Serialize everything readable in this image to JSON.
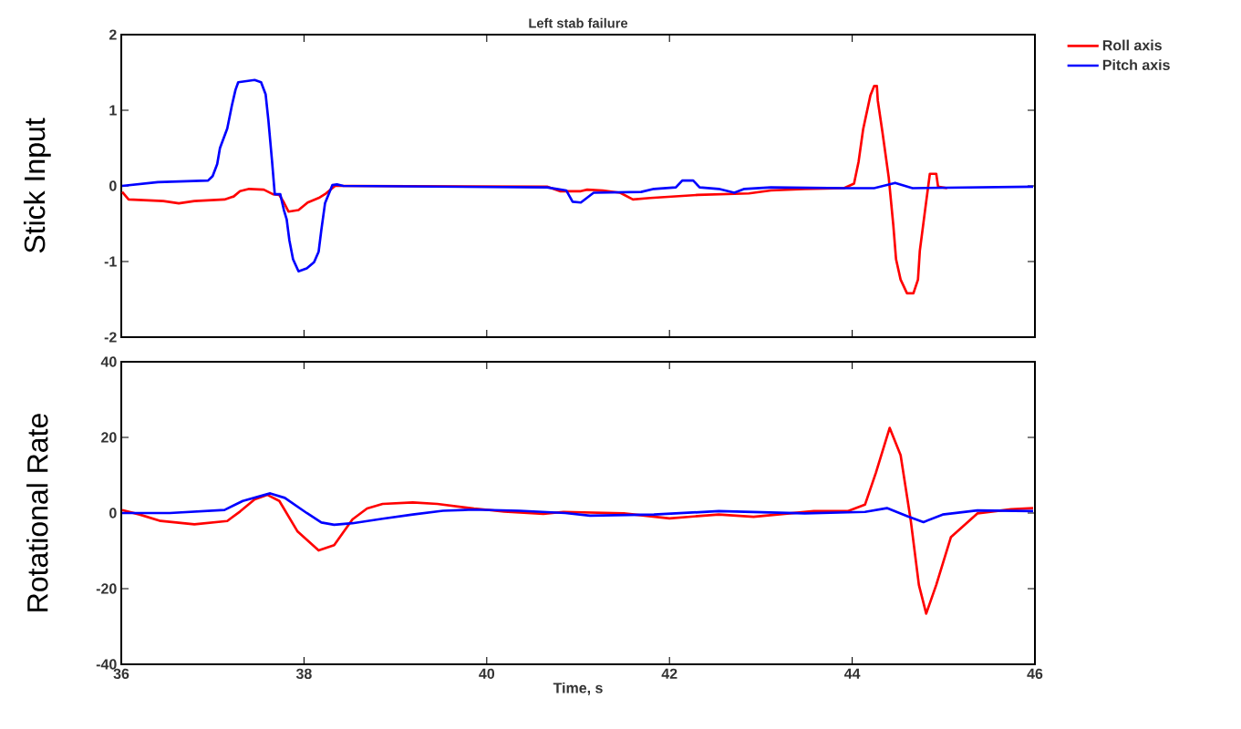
{
  "chart_data": [
    {
      "type": "line",
      "title": "Left stab failure",
      "ylabel": "Stick Input",
      "xlim": [
        36,
        46
      ],
      "ylim": [
        -2,
        2
      ],
      "xticks": [
        36,
        38,
        40,
        42,
        44,
        46
      ],
      "yticks": [
        -2,
        -1,
        0,
        1,
        2
      ],
      "tick_labels": "y",
      "legend": "top right",
      "series": [
        {
          "name": "Roll axis",
          "color": "#ff0000",
          "x": [
            36.01,
            36.08,
            36.46,
            36.63,
            36.8,
            37.13,
            37.23,
            37.3,
            37.4,
            37.56,
            37.66,
            37.73,
            37.78,
            37.83,
            37.94,
            38.04,
            38.16,
            38.24,
            38.34,
            38.53,
            40.66,
            40.8,
            41.03,
            41.1,
            41.27,
            41.46,
            41.6,
            41.79,
            42.31,
            42.87,
            43.11,
            43.48,
            43.91,
            44.02,
            44.07,
            44.12,
            44.2,
            44.24,
            44.27,
            44.28,
            44.33,
            44.4,
            44.45,
            44.48,
            44.53,
            44.6,
            44.67,
            44.72,
            44.74,
            44.8,
            44.85,
            44.92,
            44.94,
            45.04
          ],
          "values": [
            -0.08,
            -0.18,
            -0.2,
            -0.23,
            -0.2,
            -0.18,
            -0.14,
            -0.07,
            -0.04,
            -0.05,
            -0.11,
            -0.12,
            -0.22,
            -0.34,
            -0.32,
            -0.22,
            -0.16,
            -0.1,
            0.0,
            0.0,
            -0.01,
            -0.07,
            -0.07,
            -0.05,
            -0.06,
            -0.09,
            -0.18,
            -0.16,
            -0.12,
            -0.1,
            -0.06,
            -0.04,
            -0.03,
            0.03,
            0.32,
            0.75,
            1.2,
            1.32,
            1.32,
            1.13,
            0.72,
            0.11,
            -0.52,
            -0.97,
            -1.24,
            -1.42,
            -1.42,
            -1.24,
            -0.86,
            -0.3,
            0.16,
            0.16,
            -0.01,
            -0.03
          ]
        },
        {
          "name": "Pitch axis",
          "color": "#0000ff",
          "x": [
            36.01,
            36.4,
            36.95,
            37.0,
            37.05,
            37.08,
            37.16,
            37.21,
            37.25,
            37.28,
            37.46,
            37.53,
            37.58,
            37.61,
            37.65,
            37.68,
            37.74,
            37.78,
            37.81,
            37.84,
            37.88,
            37.94,
            38.03,
            38.11,
            38.16,
            38.19,
            38.23,
            38.31,
            38.36,
            38.43,
            40.66,
            40.87,
            40.94,
            41.03,
            41.17,
            41.69,
            41.83,
            42.07,
            42.14,
            42.26,
            42.33,
            42.54,
            42.71,
            42.82,
            43.11,
            43.95,
            44.24,
            44.47,
            44.66,
            45.98
          ],
          "values": [
            0.0,
            0.05,
            0.07,
            0.13,
            0.29,
            0.5,
            0.76,
            1.06,
            1.27,
            1.37,
            1.4,
            1.37,
            1.21,
            0.87,
            0.33,
            -0.11,
            -0.11,
            -0.32,
            -0.44,
            -0.72,
            -0.97,
            -1.13,
            -1.09,
            -1.01,
            -0.87,
            -0.58,
            -0.23,
            0.01,
            0.02,
            0.0,
            -0.02,
            -0.06,
            -0.21,
            -0.22,
            -0.09,
            -0.08,
            -0.04,
            -0.02,
            0.07,
            0.07,
            -0.02,
            -0.04,
            -0.09,
            -0.04,
            -0.02,
            -0.03,
            -0.03,
            0.04,
            -0.03,
            -0.01
          ]
        }
      ]
    },
    {
      "type": "line",
      "xlabel": "Time, s",
      "ylabel": "Rotational Rate",
      "xlim": [
        36,
        46
      ],
      "ylim": [
        -40,
        40
      ],
      "xticks": [
        36,
        38,
        40,
        42,
        44,
        46
      ],
      "yticks": [
        -40,
        -20,
        0,
        20,
        40
      ],
      "series": [
        {
          "color": "#ff0000",
          "x": [
            36.01,
            36.2,
            36.43,
            36.8,
            37.16,
            37.3,
            37.46,
            37.6,
            37.73,
            37.93,
            38.16,
            38.33,
            38.53,
            38.69,
            38.86,
            39.19,
            39.46,
            39.86,
            40.19,
            40.62,
            40.84,
            41.13,
            41.5,
            42.0,
            42.54,
            42.92,
            43.58,
            43.95,
            44.14,
            44.26,
            44.41,
            44.53,
            44.64,
            44.73,
            44.81,
            44.92,
            45.08,
            45.37,
            45.74,
            45.98
          ],
          "values": [
            0.8,
            -0.4,
            -2.1,
            -3.0,
            -2.1,
            0.4,
            3.6,
            4.8,
            3.2,
            -4.9,
            -9.9,
            -8.5,
            -1.7,
            1.2,
            2.4,
            2.8,
            2.4,
            1.2,
            0.4,
            -0.2,
            0.3,
            null,
            -0.1,
            -1.4,
            -0.4,
            -1.0,
            0.5,
            0.5,
            2.2,
            10.7,
            22.5,
            15.3,
            -1.8,
            -19.0,
            -26.6,
            -19.0,
            -6.4,
            -0.1,
            1.0,
            1.3
          ]
        },
        {
          "color": "#0000ff",
          "x": [
            36.01,
            36.53,
            37.13,
            37.33,
            37.63,
            37.79,
            38.03,
            38.19,
            38.33,
            38.53,
            38.86,
            39.19,
            39.52,
            39.86,
            40.36,
            40.86,
            41.13,
            41.83,
            42.54,
            43.48,
            44.14,
            44.38,
            44.61,
            44.78,
            44.99,
            45.37,
            45.98
          ],
          "values": [
            0.0,
            0.0,
            0.8,
            3.2,
            5.2,
            4.0,
            0.0,
            -2.5,
            -3.1,
            -2.7,
            -1.5,
            -0.4,
            0.6,
            0.9,
            0.6,
            0.0,
            -0.7,
            -0.4,
            0.5,
            -0.1,
            0.3,
            1.3,
            -0.9,
            -2.4,
            -0.4,
            0.7,
            0.5
          ]
        }
      ]
    }
  ]
}
